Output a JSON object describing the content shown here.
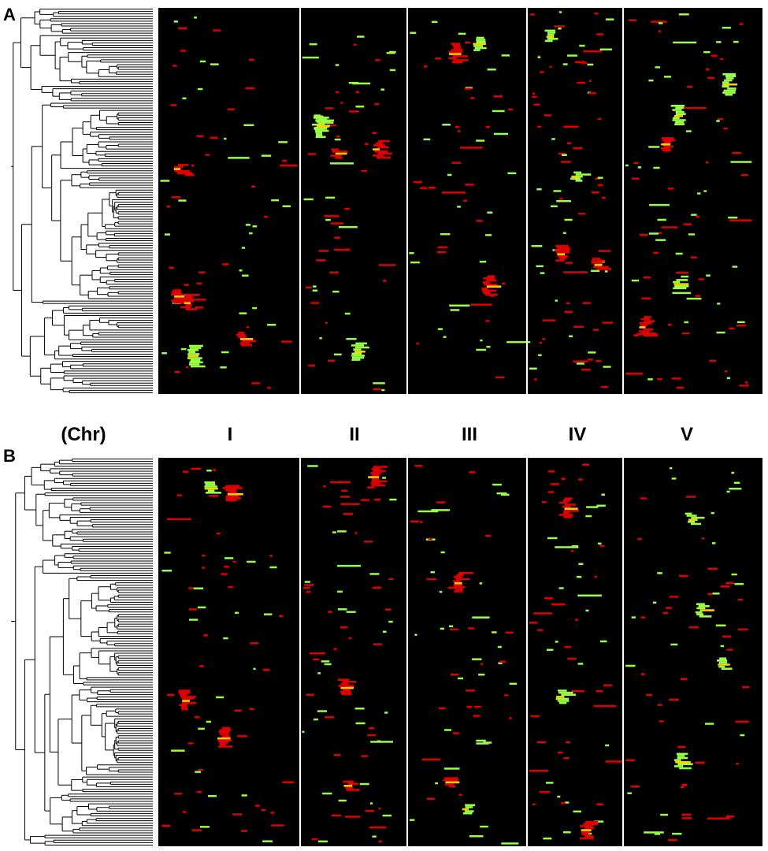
{
  "panels": [
    {
      "label": "A",
      "tree_seed": 11,
      "mark_seed": 101
    },
    {
      "label": "B",
      "tree_seed": 23,
      "mark_seed": 207
    }
  ],
  "chromosome_header": "(Chr)",
  "chromosomes": [
    "I",
    "II",
    "III",
    "IV",
    "V"
  ],
  "colors": {
    "background": "#000000",
    "separator": "#ffffff",
    "gain": "#99ff44",
    "loss": "#e00000",
    "overlap": "#ffd000",
    "tree": "#000000"
  }
}
